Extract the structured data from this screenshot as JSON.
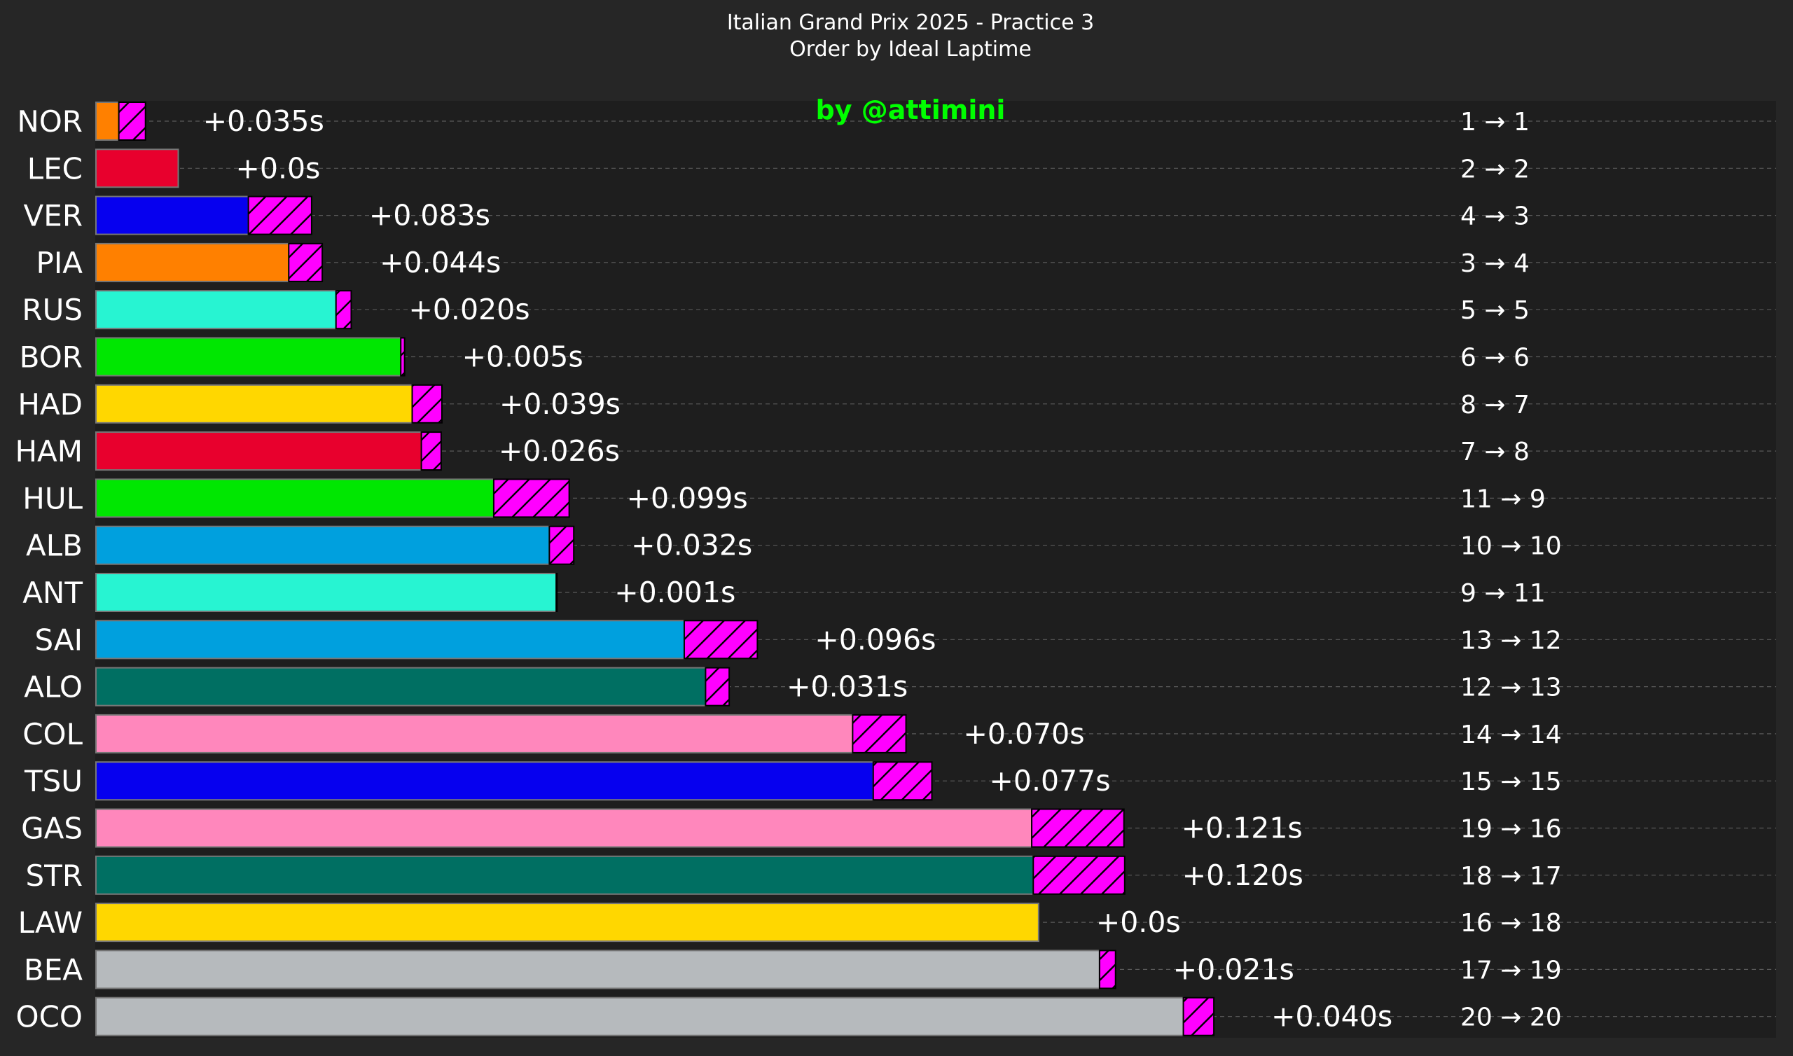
{
  "chart_data": {
    "type": "bar",
    "orientation": "horizontal",
    "title": "Italian Grand Prix 2025 - Practice 3",
    "subtitle": "Order by Ideal Laptime",
    "watermark": "by @attimini",
    "grid": true,
    "legend": "none",
    "x_axis_visible": false,
    "xlim": [
      0,
      1.2
    ],
    "colors": {
      "background": "#262626",
      "plot_background": "#1e1e1e",
      "delta_fill": "#ff00ff",
      "watermark": "#00ff00",
      "text": "#ffffff"
    },
    "drivers": [
      {
        "code": "NOR",
        "value": 0.03,
        "delta": 0.035,
        "delta_label": "+0.035s",
        "position_change": "1 → 1",
        "color": "#ff8000"
      },
      {
        "code": "LEC",
        "value": 0.108,
        "delta": 0.0,
        "delta_label": "+0.0s",
        "position_change": "2 → 2",
        "color": "#e8002d"
      },
      {
        "code": "VER",
        "value": 0.2,
        "delta": 0.083,
        "delta_label": "+0.083s",
        "position_change": "4 → 3",
        "color": "#0600ef"
      },
      {
        "code": "PIA",
        "value": 0.253,
        "delta": 0.044,
        "delta_label": "+0.044s",
        "position_change": "3 → 4",
        "color": "#ff8000"
      },
      {
        "code": "RUS",
        "value": 0.315,
        "delta": 0.02,
        "delta_label": "+0.020s",
        "position_change": "5 → 5",
        "color": "#27f4d2"
      },
      {
        "code": "BOR",
        "value": 0.4,
        "delta": 0.005,
        "delta_label": "+0.005s",
        "position_change": "6 → 6",
        "color": "#00e701"
      },
      {
        "code": "HAD",
        "value": 0.415,
        "delta": 0.039,
        "delta_label": "+0.039s",
        "position_change": "8 → 7",
        "color": "#ffd700"
      },
      {
        "code": "HAM",
        "value": 0.427,
        "delta": 0.026,
        "delta_label": "+0.026s",
        "position_change": "7 → 8",
        "color": "#e8002d"
      },
      {
        "code": "HUL",
        "value": 0.522,
        "delta": 0.099,
        "delta_label": "+0.099s",
        "position_change": "11 → 9",
        "color": "#00e701"
      },
      {
        "code": "ALB",
        "value": 0.595,
        "delta": 0.032,
        "delta_label": "+0.032s",
        "position_change": "10 → 10",
        "color": "#00a0de"
      },
      {
        "code": "ANT",
        "value": 0.604,
        "delta": 0.001,
        "delta_label": "+0.001s",
        "position_change": "9 → 11",
        "color": "#27f4d2"
      },
      {
        "code": "SAI",
        "value": 0.772,
        "delta": 0.096,
        "delta_label": "+0.096s",
        "position_change": "13 → 12",
        "color": "#00a0de"
      },
      {
        "code": "ALO",
        "value": 0.8,
        "delta": 0.031,
        "delta_label": "+0.031s",
        "position_change": "12 → 13",
        "color": "#006f62"
      },
      {
        "code": "COL",
        "value": 0.993,
        "delta": 0.07,
        "delta_label": "+0.070s",
        "position_change": "14 → 14",
        "color": "#ff87bc"
      },
      {
        "code": "TSU",
        "value": 1.02,
        "delta": 0.077,
        "delta_label": "+0.077s",
        "position_change": "15 → 15",
        "color": "#0600ef"
      },
      {
        "code": "GAS",
        "value": 1.228,
        "delta": 0.121,
        "delta_label": "+0.121s",
        "position_change": "19 → 16",
        "color": "#ff87bc"
      },
      {
        "code": "STR",
        "value": 1.23,
        "delta": 0.12,
        "delta_label": "+0.120s",
        "position_change": "18 → 17",
        "color": "#006f62"
      },
      {
        "code": "LAW",
        "value": 1.237,
        "delta": 0.0,
        "delta_label": "+0.0s",
        "position_change": "16 → 18",
        "color": "#ffd700"
      },
      {
        "code": "BEA",
        "value": 1.317,
        "delta": 0.021,
        "delta_label": "+0.021s",
        "position_change": "17 → 19",
        "color": "#b6babd"
      },
      {
        "code": "OCO",
        "value": 1.427,
        "delta": 0.04,
        "delta_label": "+0.040s",
        "position_change": "20 → 20",
        "color": "#b6babd"
      }
    ]
  }
}
